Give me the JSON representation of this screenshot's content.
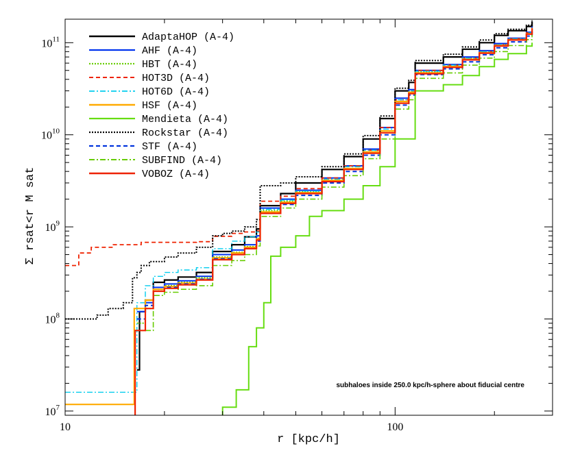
{
  "chart_data": {
    "type": "line",
    "xscale": "log",
    "yscale": "log",
    "xlim": [
      10,
      300
    ],
    "ylim": [
      9000000,
      180000000000
    ],
    "xlabel": "r [kpc/h]",
    "ylabel": "Σ rsat<r  M sat",
    "x_ticks": [
      {
        "value": 10,
        "label": "10"
      },
      {
        "value": 100,
        "label": "100"
      }
    ],
    "y_ticks": [
      {
        "value": 10000000,
        "base": "10",
        "exp": "7"
      },
      {
        "value": 100000000,
        "base": "10",
        "exp": "8"
      },
      {
        "value": 1000000000,
        "base": "10",
        "exp": "9"
      },
      {
        "value": 10000000000,
        "base": "10",
        "exp": "10"
      },
      {
        "value": 100000000000,
        "base": "10",
        "exp": "11"
      }
    ],
    "annotation": "subhaloes inside 250.0 kpc/h-sphere about fiducial centre",
    "legend_position": "top-left",
    "series": [
      {
        "name": "AdaptaHOP (A-4)",
        "color": "#000000",
        "dash": "solid",
        "width": 2.2,
        "x": [
          16.5,
          16.8,
          17.5,
          18.5,
          20,
          22,
          25,
          28,
          28,
          32,
          35,
          38,
          39,
          39,
          45,
          50,
          60,
          70,
          80,
          90,
          100,
          110,
          115,
          115,
          140,
          160,
          180,
          200,
          220,
          250,
          260
        ],
        "y": [
          28000000,
          120000000,
          160000000,
          250000000,
          265000000,
          285000000,
          320000000,
          350000000,
          540000000,
          640000000,
          780000000,
          950000000,
          1200000000,
          1700000000,
          2300000000,
          3000000000,
          4200000000,
          5800000000,
          9000000000,
          15000000000,
          30000000000,
          37000000000,
          40000000000,
          60000000000,
          70000000000,
          85000000000,
          100000000000,
          120000000000,
          135000000000,
          150000000000,
          170000000000
        ]
      },
      {
        "name": "AHF (A-4)",
        "color": "#0033ee",
        "dash": "solid",
        "width": 2.0,
        "x": [
          16.5,
          17.5,
          18.5,
          20,
          22,
          25,
          28,
          28,
          32,
          35,
          38,
          39,
          39,
          45,
          50,
          60,
          70,
          80,
          90,
          100,
          110,
          115,
          115,
          140,
          160,
          180,
          200,
          220,
          250,
          260
        ],
        "y": [
          120000000,
          150000000,
          220000000,
          240000000,
          260000000,
          290000000,
          320000000,
          500000000,
          560000000,
          640000000,
          800000000,
          1000000000,
          1600000000,
          2000000000,
          2500000000,
          3400000000,
          4600000000,
          7000000000,
          12000000000,
          25000000000,
          31000000000,
          34000000000,
          50000000000,
          58000000000,
          70000000000,
          82000000000,
          98000000000,
          112000000000,
          130000000000,
          150000000000
        ]
      },
      {
        "name": "HBT (A-4)",
        "color": "#66cc00",
        "dash": "dotted",
        "width": 2.0,
        "x": [
          16.5,
          17.5,
          18.5,
          20,
          22,
          25,
          28,
          28,
          32,
          35,
          38,
          39,
          39,
          45,
          50,
          60,
          70,
          80,
          90,
          100,
          110,
          115,
          115,
          140,
          160,
          180,
          200,
          220,
          250,
          260
        ],
        "y": [
          90000000,
          130000000,
          210000000,
          230000000,
          250000000,
          280000000,
          310000000,
          470000000,
          530000000,
          610000000,
          750000000,
          950000000,
          1500000000,
          1900000000,
          2400000000,
          3200000000,
          4300000000,
          6500000000,
          11000000000,
          23000000000,
          29000000000,
          32000000000,
          48000000000,
          55000000000,
          67000000000,
          79000000000,
          94000000000,
          108000000000,
          125000000000,
          145000000000
        ]
      },
      {
        "name": "HOT3D (A-4)",
        "color": "#ee2200",
        "dash": "dashed",
        "width": 1.8,
        "x": [
          10,
          11,
          11,
          12,
          12,
          14,
          14,
          17,
          17,
          25,
          28,
          28,
          32,
          35,
          38,
          39,
          39,
          45,
          50,
          60,
          70,
          80,
          90,
          100,
          110,
          115,
          115,
          140,
          160,
          180,
          200,
          220,
          250,
          260
        ],
        "y": [
          380000000,
          380000000,
          520000000,
          520000000,
          600000000,
          600000000,
          640000000,
          660000000,
          680000000,
          690000000,
          700000000,
          790000000,
          850000000,
          880000000,
          900000000,
          920000000,
          1900000000,
          2150000000,
          2600000000,
          3400000000,
          4600000000,
          6800000000,
          12000000000,
          24000000000,
          30000000000,
          33000000000,
          50000000000,
          57000000000,
          68000000000,
          80000000000,
          95000000000,
          110000000000,
          128000000000,
          148000000000
        ]
      },
      {
        "name": "HOT6D (A-4)",
        "color": "#00ccee",
        "dash": "dashdot",
        "width": 1.4,
        "x": [
          10,
          16.5,
          16.5,
          17.5,
          18.5,
          20,
          22,
          25,
          28,
          28,
          32,
          35,
          38,
          39,
          39,
          45,
          50,
          60,
          70,
          80,
          90,
          100,
          110,
          115,
          115,
          140,
          160,
          180,
          200,
          220,
          250,
          260
        ],
        "y": [
          16000000,
          16000000,
          150000000,
          230000000,
          290000000,
          320000000,
          340000000,
          360000000,
          390000000,
          580000000,
          700000000,
          780000000,
          880000000,
          1050000000,
          1550000000,
          1950000000,
          2450000000,
          3300000000,
          4500000000,
          6800000000,
          11500000000,
          24000000000,
          30000000000,
          33000000000,
          49000000000,
          57000000000,
          68000000000,
          80000000000,
          95000000000,
          110000000000,
          128000000000,
          148000000000
        ]
      },
      {
        "name": "HSF (A-4)",
        "color": "#ffaa00",
        "dash": "solid",
        "width": 2.2,
        "x": [
          10,
          16.2,
          16.2,
          17.5,
          18.5,
          20,
          22,
          25,
          28,
          28,
          32,
          35,
          38,
          39,
          39,
          45,
          50,
          60,
          70,
          80,
          90,
          100,
          110,
          115,
          115,
          140,
          160,
          180,
          200,
          220,
          250,
          260
        ],
        "y": [
          11800000,
          11800000,
          130000000,
          160000000,
          210000000,
          225000000,
          245000000,
          270000000,
          300000000,
          460000000,
          520000000,
          600000000,
          740000000,
          930000000,
          1450000000,
          1850000000,
          2350000000,
          3200000000,
          4300000000,
          6500000000,
          11000000000,
          23000000000,
          29000000000,
          32000000000,
          47000000000,
          55000000000,
          66000000000,
          78000000000,
          93000000000,
          108000000000,
          125000000000,
          145000000000
        ]
      },
      {
        "name": "Mendieta (A-4)",
        "color": "#66dd11",
        "dash": "solid",
        "width": 2.0,
        "x": [
          30,
          30,
          33,
          33,
          36,
          36,
          38,
          40,
          42,
          45,
          50,
          55,
          60,
          70,
          80,
          90,
          100,
          115,
          115,
          140,
          160,
          180,
          200,
          220,
          250,
          260
        ],
        "y": [
          9000000,
          11000000,
          11000000,
          17000000,
          17000000,
          50000000,
          80000000,
          150000000,
          480000000,
          600000000,
          800000000,
          1300000000,
          1500000000,
          2000000000,
          2800000000,
          4500000000,
          9000000000,
          16000000000,
          30000000000,
          35000000000,
          44000000000,
          55000000000,
          66000000000,
          76000000000,
          92000000000,
          100000000000
        ]
      },
      {
        "name": "Rockstar (A-4)",
        "color": "#000000",
        "dash": "dotted",
        "width": 2.0,
        "x": [
          10,
          11.5,
          12.5,
          13.5,
          15,
          16,
          16.5,
          17,
          18,
          20,
          22,
          25,
          28,
          28,
          30,
          32,
          35,
          38,
          39,
          39,
          45,
          50,
          60,
          70,
          80,
          90,
          100,
          110,
          115,
          115,
          140,
          160,
          180,
          200,
          220,
          250,
          260
        ],
        "y": [
          100000000,
          100000000,
          110000000,
          130000000,
          150000000,
          280000000,
          320000000,
          380000000,
          420000000,
          470000000,
          520000000,
          600000000,
          700000000,
          800000000,
          850000000,
          900000000,
          1000000000,
          1200000000,
          1500000000,
          2800000000,
          3000000000,
          3500000000,
          4500000000,
          6200000000,
          9800000000,
          16000000000,
          32000000000,
          39000000000,
          42000000000,
          64000000000,
          75000000000,
          90000000000,
          107000000000,
          125000000000,
          140000000000,
          155000000000,
          175000000000
        ]
      },
      {
        "name": "STF (A-4)",
        "color": "#0033dd",
        "dash": "dashed",
        "width": 2.0,
        "x": [
          16.5,
          17.5,
          18.5,
          20,
          22,
          25,
          28,
          28,
          32,
          35,
          38,
          39,
          39,
          45,
          50,
          60,
          70,
          80,
          90,
          100,
          110,
          115,
          115,
          140,
          160,
          180,
          200,
          220,
          250,
          260
        ],
        "y": [
          100000000,
          140000000,
          200000000,
          220000000,
          240000000,
          270000000,
          300000000,
          450000000,
          500000000,
          580000000,
          700000000,
          880000000,
          1400000000,
          1750000000,
          2200000000,
          3000000000,
          4000000000,
          6000000000,
          10000000000,
          21000000000,
          27000000000,
          30000000000,
          45000000000,
          52000000000,
          62000000000,
          74000000000,
          88000000000,
          102000000000,
          118000000000,
          135000000000
        ]
      },
      {
        "name": "SUBFIND (A-4)",
        "color": "#66cc00",
        "dash": "dashdot",
        "width": 1.6,
        "x": [
          17.5,
          18.5,
          20,
          22,
          25,
          28,
          28,
          32,
          35,
          38,
          39,
          39,
          45,
          50,
          60,
          70,
          80,
          90,
          100,
          110,
          115,
          115,
          140,
          160,
          180,
          200,
          220,
          250,
          260
        ],
        "y": [
          75000000,
          180000000,
          195000000,
          210000000,
          230000000,
          250000000,
          380000000,
          430000000,
          500000000,
          620000000,
          800000000,
          1300000000,
          1600000000,
          2000000000,
          2700000000,
          3600000000,
          5500000000,
          9000000000,
          19000000000,
          24000000000,
          27000000000,
          41000000000,
          47000000000,
          57000000000,
          68000000000,
          80000000000,
          93000000000,
          108000000000,
          122000000000
        ]
      },
      {
        "name": "VOBOZ (A-4)",
        "color": "#ee2200",
        "dash": "solid",
        "width": 2.2,
        "x": [
          16.3,
          16.3,
          17.5,
          18.5,
          20,
          22,
          25,
          28,
          28,
          32,
          35,
          38,
          39,
          39,
          45,
          50,
          60,
          70,
          80,
          90,
          100,
          110,
          115,
          115,
          140,
          160,
          180,
          200,
          220,
          250,
          260
        ],
        "y": [
          9000000,
          75000000,
          130000000,
          200000000,
          215000000,
          235000000,
          265000000,
          295000000,
          440000000,
          500000000,
          580000000,
          720000000,
          900000000,
          1400000000,
          1800000000,
          2300000000,
          3100000000,
          4200000000,
          6300000000,
          10500000000,
          22000000000,
          28000000000,
          31000000000,
          46000000000,
          54000000000,
          65000000000,
          77000000000,
          92000000000,
          107000000000,
          124000000000,
          143000000000
        ]
      }
    ]
  }
}
